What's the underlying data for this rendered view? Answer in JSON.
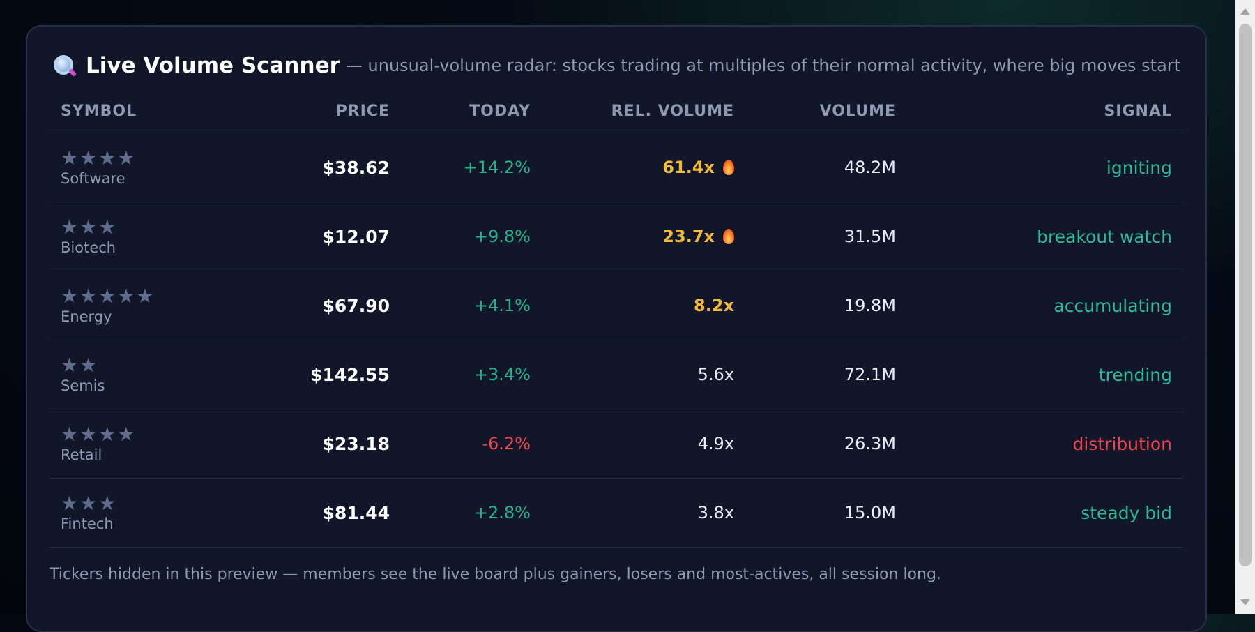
{
  "header": {
    "icon": "magnifying-glass-icon",
    "title": "Live Volume Scanner",
    "subtitle": "— unusual-volume radar: stocks trading at multiples of their normal activity, where big moves start"
  },
  "columns": {
    "symbol": "SYMBOL",
    "price": "PRICE",
    "today": "TODAY",
    "rel_volume": "REL. VOLUME",
    "volume": "VOLUME",
    "signal": "SIGNAL"
  },
  "rows": [
    {
      "stars": "★★★★",
      "sector": "Software",
      "price": "$38.62",
      "today": "+14.2%",
      "today_dir": "pos",
      "rel_volume": "61.4x",
      "hot": true,
      "fire": true,
      "volume": "48.2M",
      "signal": "igniting",
      "signal_tone": "good"
    },
    {
      "stars": "★★★",
      "sector": "Biotech",
      "price": "$12.07",
      "today": "+9.8%",
      "today_dir": "pos",
      "rel_volume": "23.7x",
      "hot": true,
      "fire": true,
      "volume": "31.5M",
      "signal": "breakout watch",
      "signal_tone": "good"
    },
    {
      "stars": "★★★★★",
      "sector": "Energy",
      "price": "$67.90",
      "today": "+4.1%",
      "today_dir": "pos",
      "rel_volume": "8.2x",
      "hot": true,
      "fire": false,
      "volume": "19.8M",
      "signal": "accumulating",
      "signal_tone": "good"
    },
    {
      "stars": "★★",
      "sector": "Semis",
      "price": "$142.55",
      "today": "+3.4%",
      "today_dir": "pos",
      "rel_volume": "5.6x",
      "hot": false,
      "fire": false,
      "volume": "72.1M",
      "signal": "trending",
      "signal_tone": "good"
    },
    {
      "stars": "★★★★",
      "sector": "Retail",
      "price": "$23.18",
      "today": "-6.2%",
      "today_dir": "neg",
      "rel_volume": "4.9x",
      "hot": false,
      "fire": false,
      "volume": "26.3M",
      "signal": "distribution",
      "signal_tone": "bad"
    },
    {
      "stars": "★★★",
      "sector": "Fintech",
      "price": "$81.44",
      "today": "+2.8%",
      "today_dir": "pos",
      "rel_volume": "3.8x",
      "hot": false,
      "fire": false,
      "volume": "15.0M",
      "signal": "steady bid",
      "signal_tone": "good"
    }
  ],
  "footer": {
    "note": "Tickers hidden in this preview — members see the live board plus gainers, losers and most-actives, all session long."
  },
  "colors": {
    "accent_positive": "#27b08a",
    "accent_negative": "#f0454e",
    "hot_volume": "#f2b93b"
  }
}
